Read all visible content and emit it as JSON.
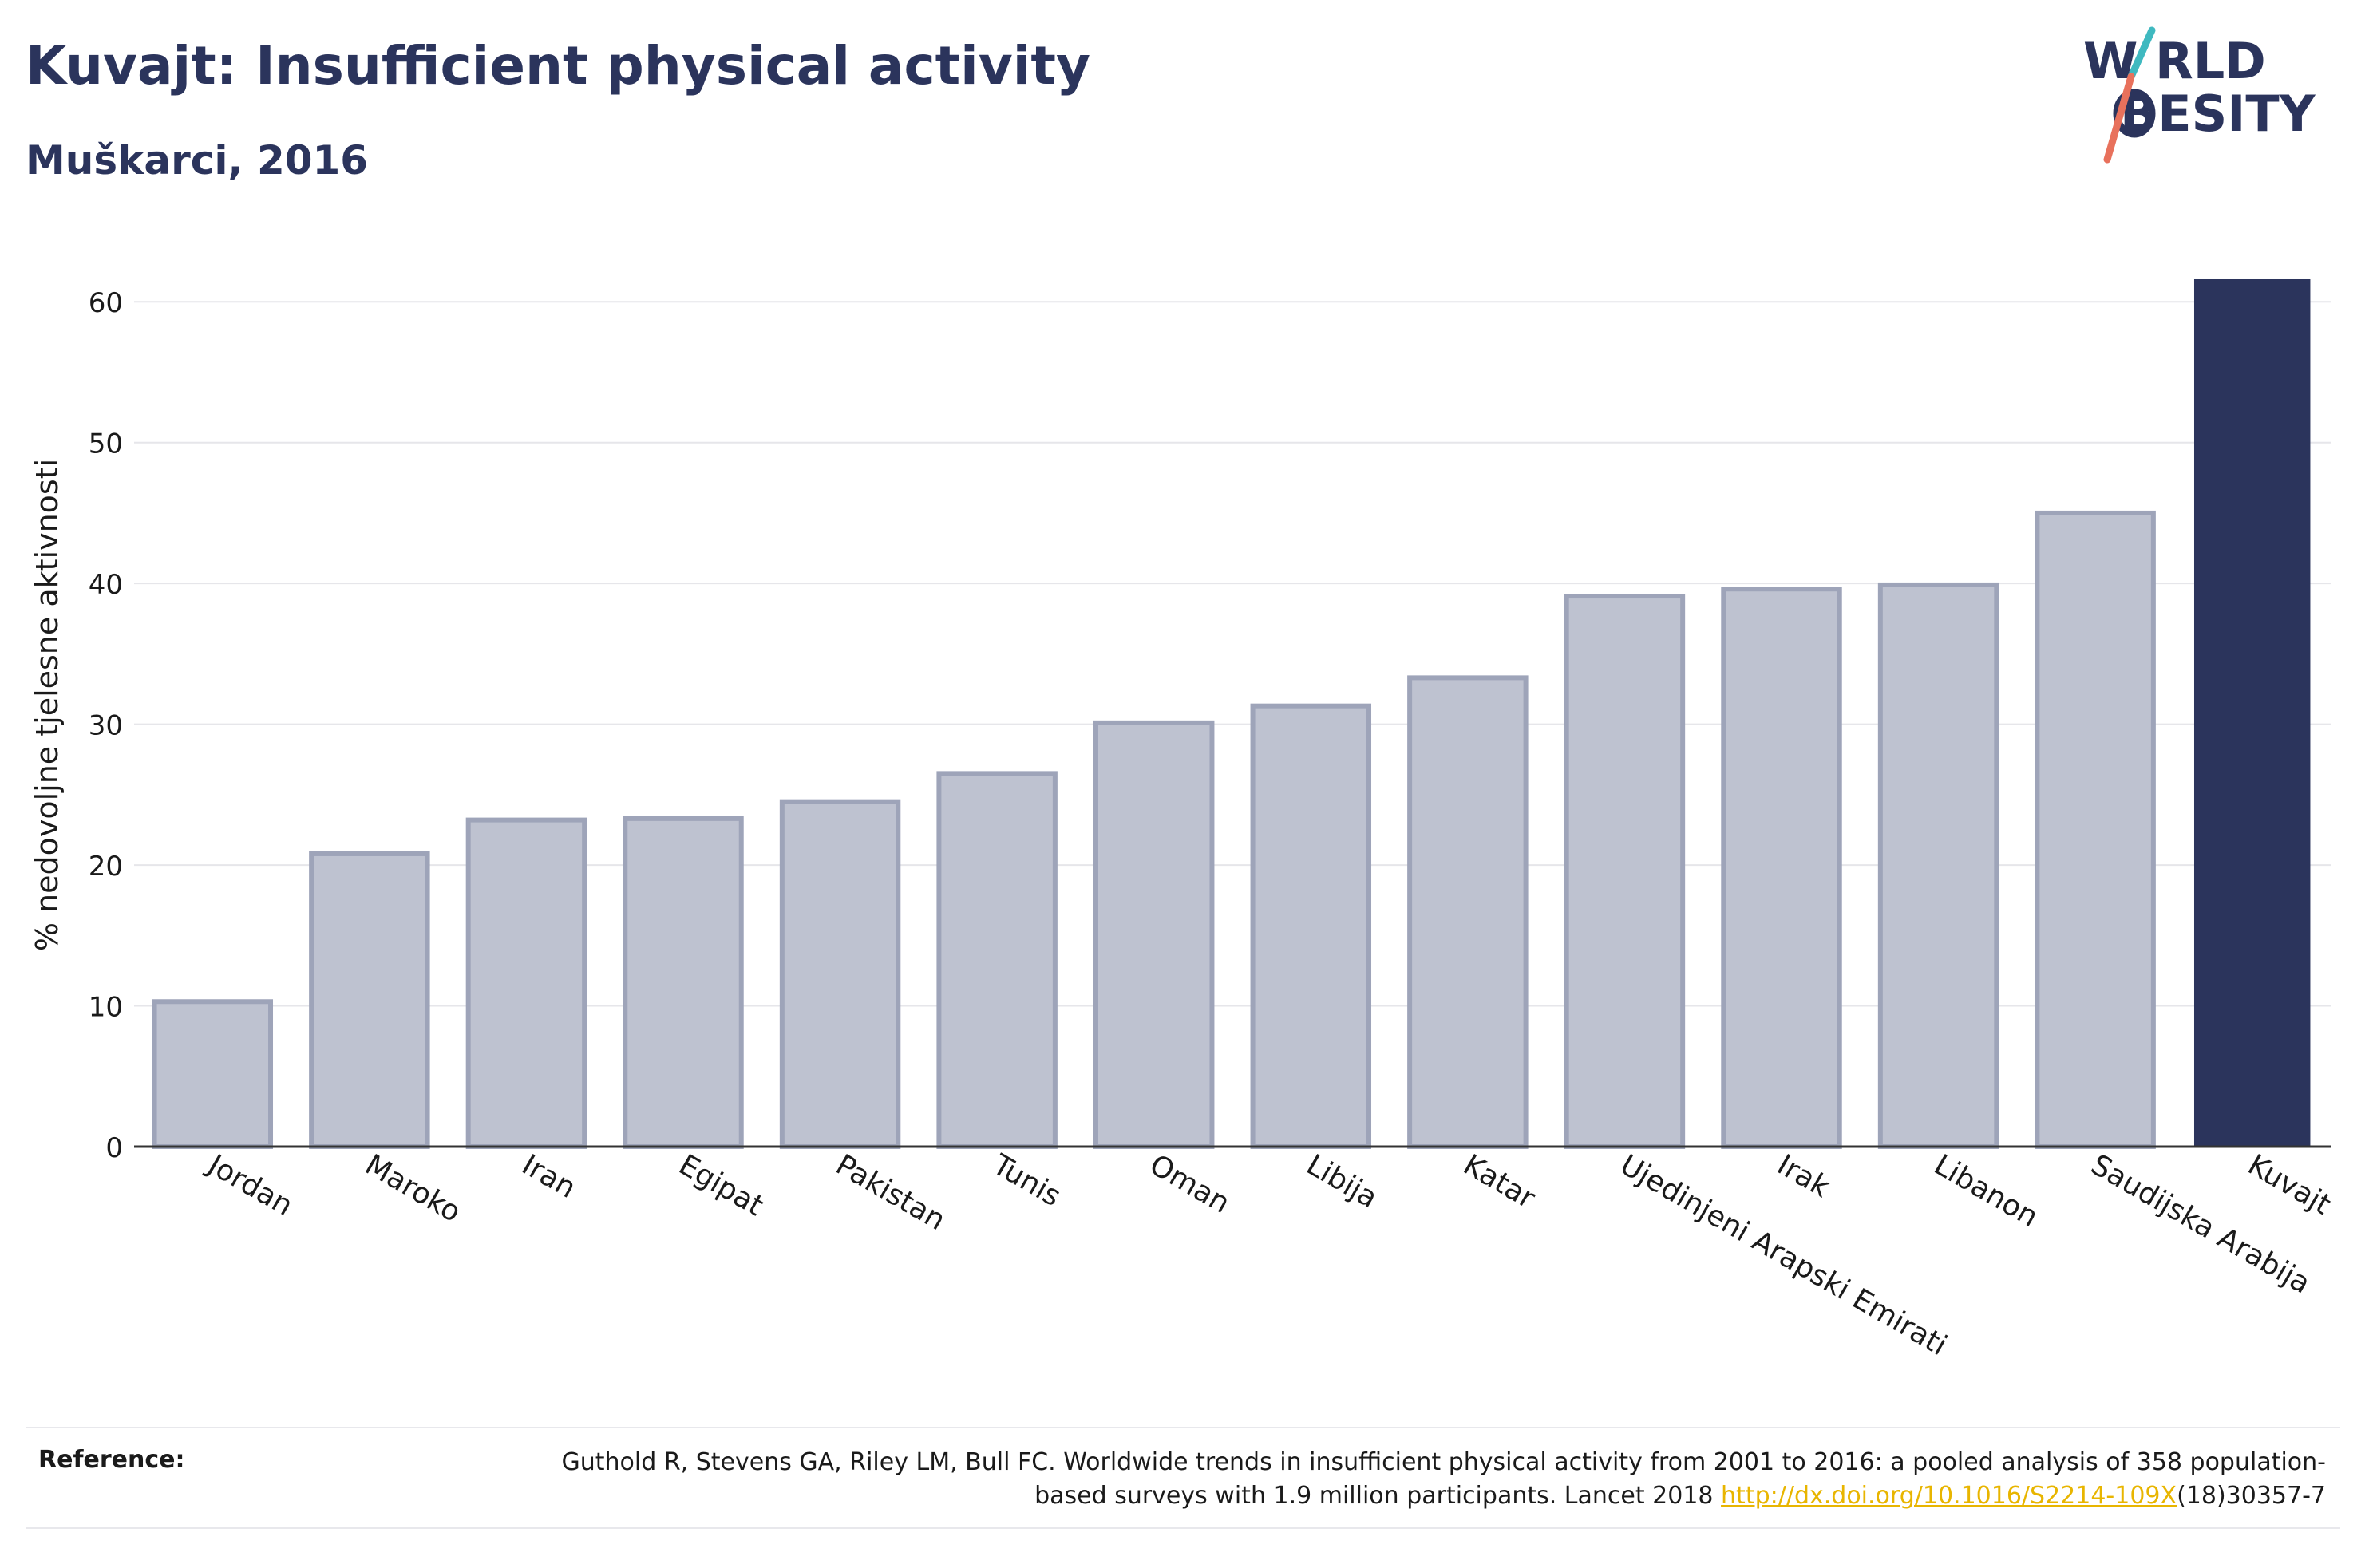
{
  "header": {
    "title": "Kuvajt: Insufficient physical activity",
    "subtitle": "Muškarci, 2016"
  },
  "logo": {
    "line1": "W RLD",
    "line2": "BESITY",
    "colors": {
      "text": "#2b345c",
      "accent_teal": "#3fb9c0",
      "accent_coral": "#e8715c"
    }
  },
  "chart_data": {
    "type": "bar",
    "title": "",
    "xlabel": "",
    "ylabel": "% nedovoljne tjelesne aktivnosti",
    "ylim": [
      0,
      65
    ],
    "yticks": [
      0,
      10,
      20,
      30,
      40,
      50,
      60
    ],
    "grid": true,
    "categories": [
      "Jordan",
      "Maroko",
      "Iran",
      "Egipat",
      "Pakistan",
      "Tunis",
      "Oman",
      "Libija",
      "Katar",
      "Ujedinjeni Arapski Emirati",
      "Irak",
      "Libanon",
      "Saudijska Arabija",
      "Kuvajt"
    ],
    "values": [
      10.3,
      20.8,
      23.2,
      23.3,
      24.5,
      26.5,
      30.1,
      31.3,
      33.3,
      39.1,
      39.6,
      39.9,
      45.0,
      61.6
    ],
    "highlight": "Kuvajt",
    "colors": {
      "bar": "#bec2d0",
      "bar_border": "#9ea4b9",
      "highlight": "#2b345c",
      "grid": "#e6e6ea",
      "axis": "#333333",
      "text": "#1a1a1a"
    }
  },
  "reference": {
    "label": "Reference:",
    "text_before": "Guthold R, Stevens GA, Riley LM, Bull FC. Worldwide trends in insufficient physical activity from 2001 to 2016: a pooled analysis of 358 population-based surveys with 1.9 million participants. Lancet 2018 ",
    "link": "http://dx.doi.org/10.1016/S2214-109X",
    "text_after": "(18)30357-7",
    "link_color": "#e8b500"
  }
}
